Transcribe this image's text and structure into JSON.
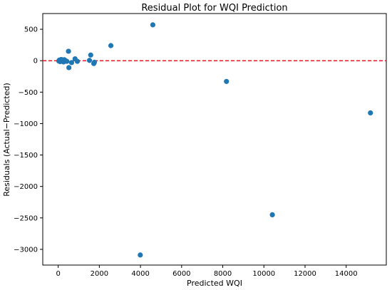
{
  "chart_data": {
    "type": "scatter",
    "title": "Residual Plot for WQI Prediction",
    "xlabel": "Predicted WQI",
    "ylabel": "Residuals (Actual−Predicted)",
    "xlim": [
      -750,
      15950
    ],
    "ylim": [
      -3250,
      750
    ],
    "xticks": [
      0,
      2000,
      4000,
      6000,
      8000,
      10000,
      12000,
      14000
    ],
    "xtick_labels": [
      "0",
      "2000",
      "4000",
      "6000",
      "8000",
      "10000",
      "12000",
      "14000"
    ],
    "yticks": [
      500,
      0,
      -500,
      -1000,
      -1500,
      -2000,
      -2500,
      -3000
    ],
    "ytick_labels": [
      "500",
      "0",
      "−500",
      "−1000",
      "−1500",
      "−2000",
      "−2500",
      "−3000"
    ],
    "reference_line": {
      "y": 0,
      "color": "#e8192c",
      "style": "dashed"
    },
    "marker_color": "#1f77b4",
    "grid": false,
    "points": [
      {
        "x": 30,
        "y": -5
      },
      {
        "x": 60,
        "y": 10
      },
      {
        "x": 90,
        "y": -15
      },
      {
        "x": 120,
        "y": 5
      },
      {
        "x": 150,
        "y": 20
      },
      {
        "x": 180,
        "y": -8
      },
      {
        "x": 220,
        "y": 12
      },
      {
        "x": 260,
        "y": -20
      },
      {
        "x": 300,
        "y": 15
      },
      {
        "x": 350,
        "y": 2
      },
      {
        "x": 420,
        "y": -10
      },
      {
        "x": 500,
        "y": 150
      },
      {
        "x": 520,
        "y": -110
      },
      {
        "x": 650,
        "y": -30
      },
      {
        "x": 820,
        "y": 30
      },
      {
        "x": 930,
        "y": -10
      },
      {
        "x": 1520,
        "y": 5
      },
      {
        "x": 1580,
        "y": 90
      },
      {
        "x": 1730,
        "y": -45
      },
      {
        "x": 1760,
        "y": -25
      },
      {
        "x": 2560,
        "y": 240
      },
      {
        "x": 4600,
        "y": 570
      },
      {
        "x": 8180,
        "y": -330
      },
      {
        "x": 15180,
        "y": -830
      },
      {
        "x": 10410,
        "y": -2450
      },
      {
        "x": 3990,
        "y": -3090
      }
    ]
  }
}
